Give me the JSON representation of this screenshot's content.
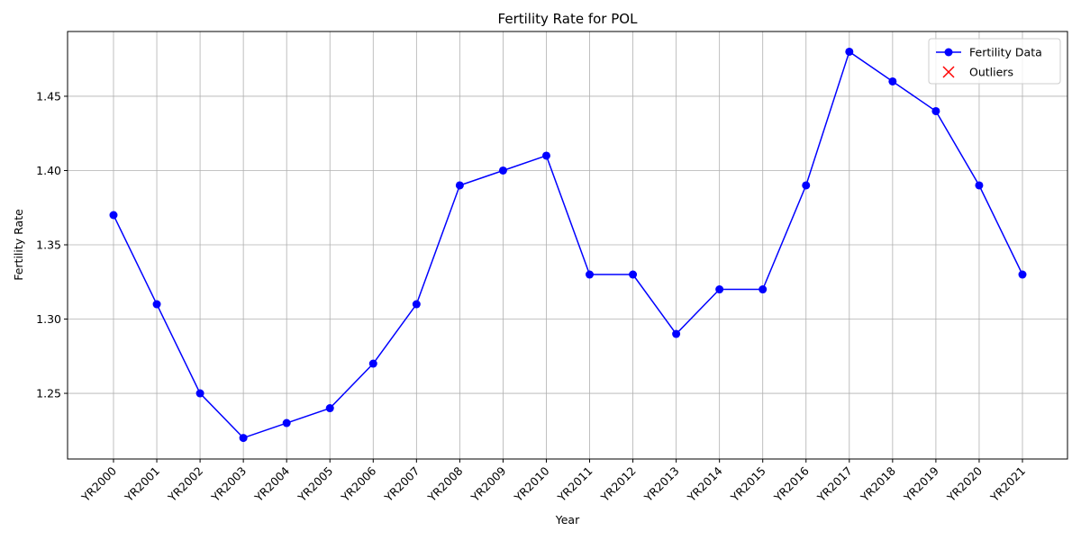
{
  "chart_data": {
    "type": "line",
    "title": "Fertility Rate for POL",
    "xlabel": "Year",
    "ylabel": "Fertility Rate",
    "categories": [
      "YR2000",
      "YR2001",
      "YR2002",
      "YR2003",
      "YR2004",
      "YR2005",
      "YR2006",
      "YR2007",
      "YR2008",
      "YR2009",
      "YR2010",
      "YR2011",
      "YR2012",
      "YR2013",
      "YR2014",
      "YR2015",
      "YR2016",
      "YR2017",
      "YR2018",
      "YR2019",
      "YR2020",
      "YR2021"
    ],
    "series": [
      {
        "name": "Fertility Data",
        "color": "#0000ff",
        "marker": "o",
        "values": [
          1.37,
          1.31,
          1.25,
          1.22,
          1.23,
          1.24,
          1.27,
          1.31,
          1.39,
          1.4,
          1.41,
          1.33,
          1.33,
          1.29,
          1.32,
          1.32,
          1.39,
          1.48,
          1.46,
          1.44,
          1.39,
          1.33
        ]
      },
      {
        "name": "Outliers",
        "color": "#ff0000",
        "marker": "x",
        "values": [
          null,
          null,
          null,
          null,
          null,
          null,
          null,
          null,
          null,
          null,
          null,
          null,
          null,
          null,
          null,
          null,
          null,
          null,
          null,
          null,
          null,
          null
        ]
      }
    ],
    "ylim": [
      1.2058,
      1.4936
    ],
    "yticks": [
      1.25,
      {
        "value": 1.3,
        "label": "1.30"
      },
      1.35,
      {
        "value": 1.4,
        "label": "1.40"
      },
      1.45
    ],
    "grid": true,
    "legend": "upper right"
  }
}
